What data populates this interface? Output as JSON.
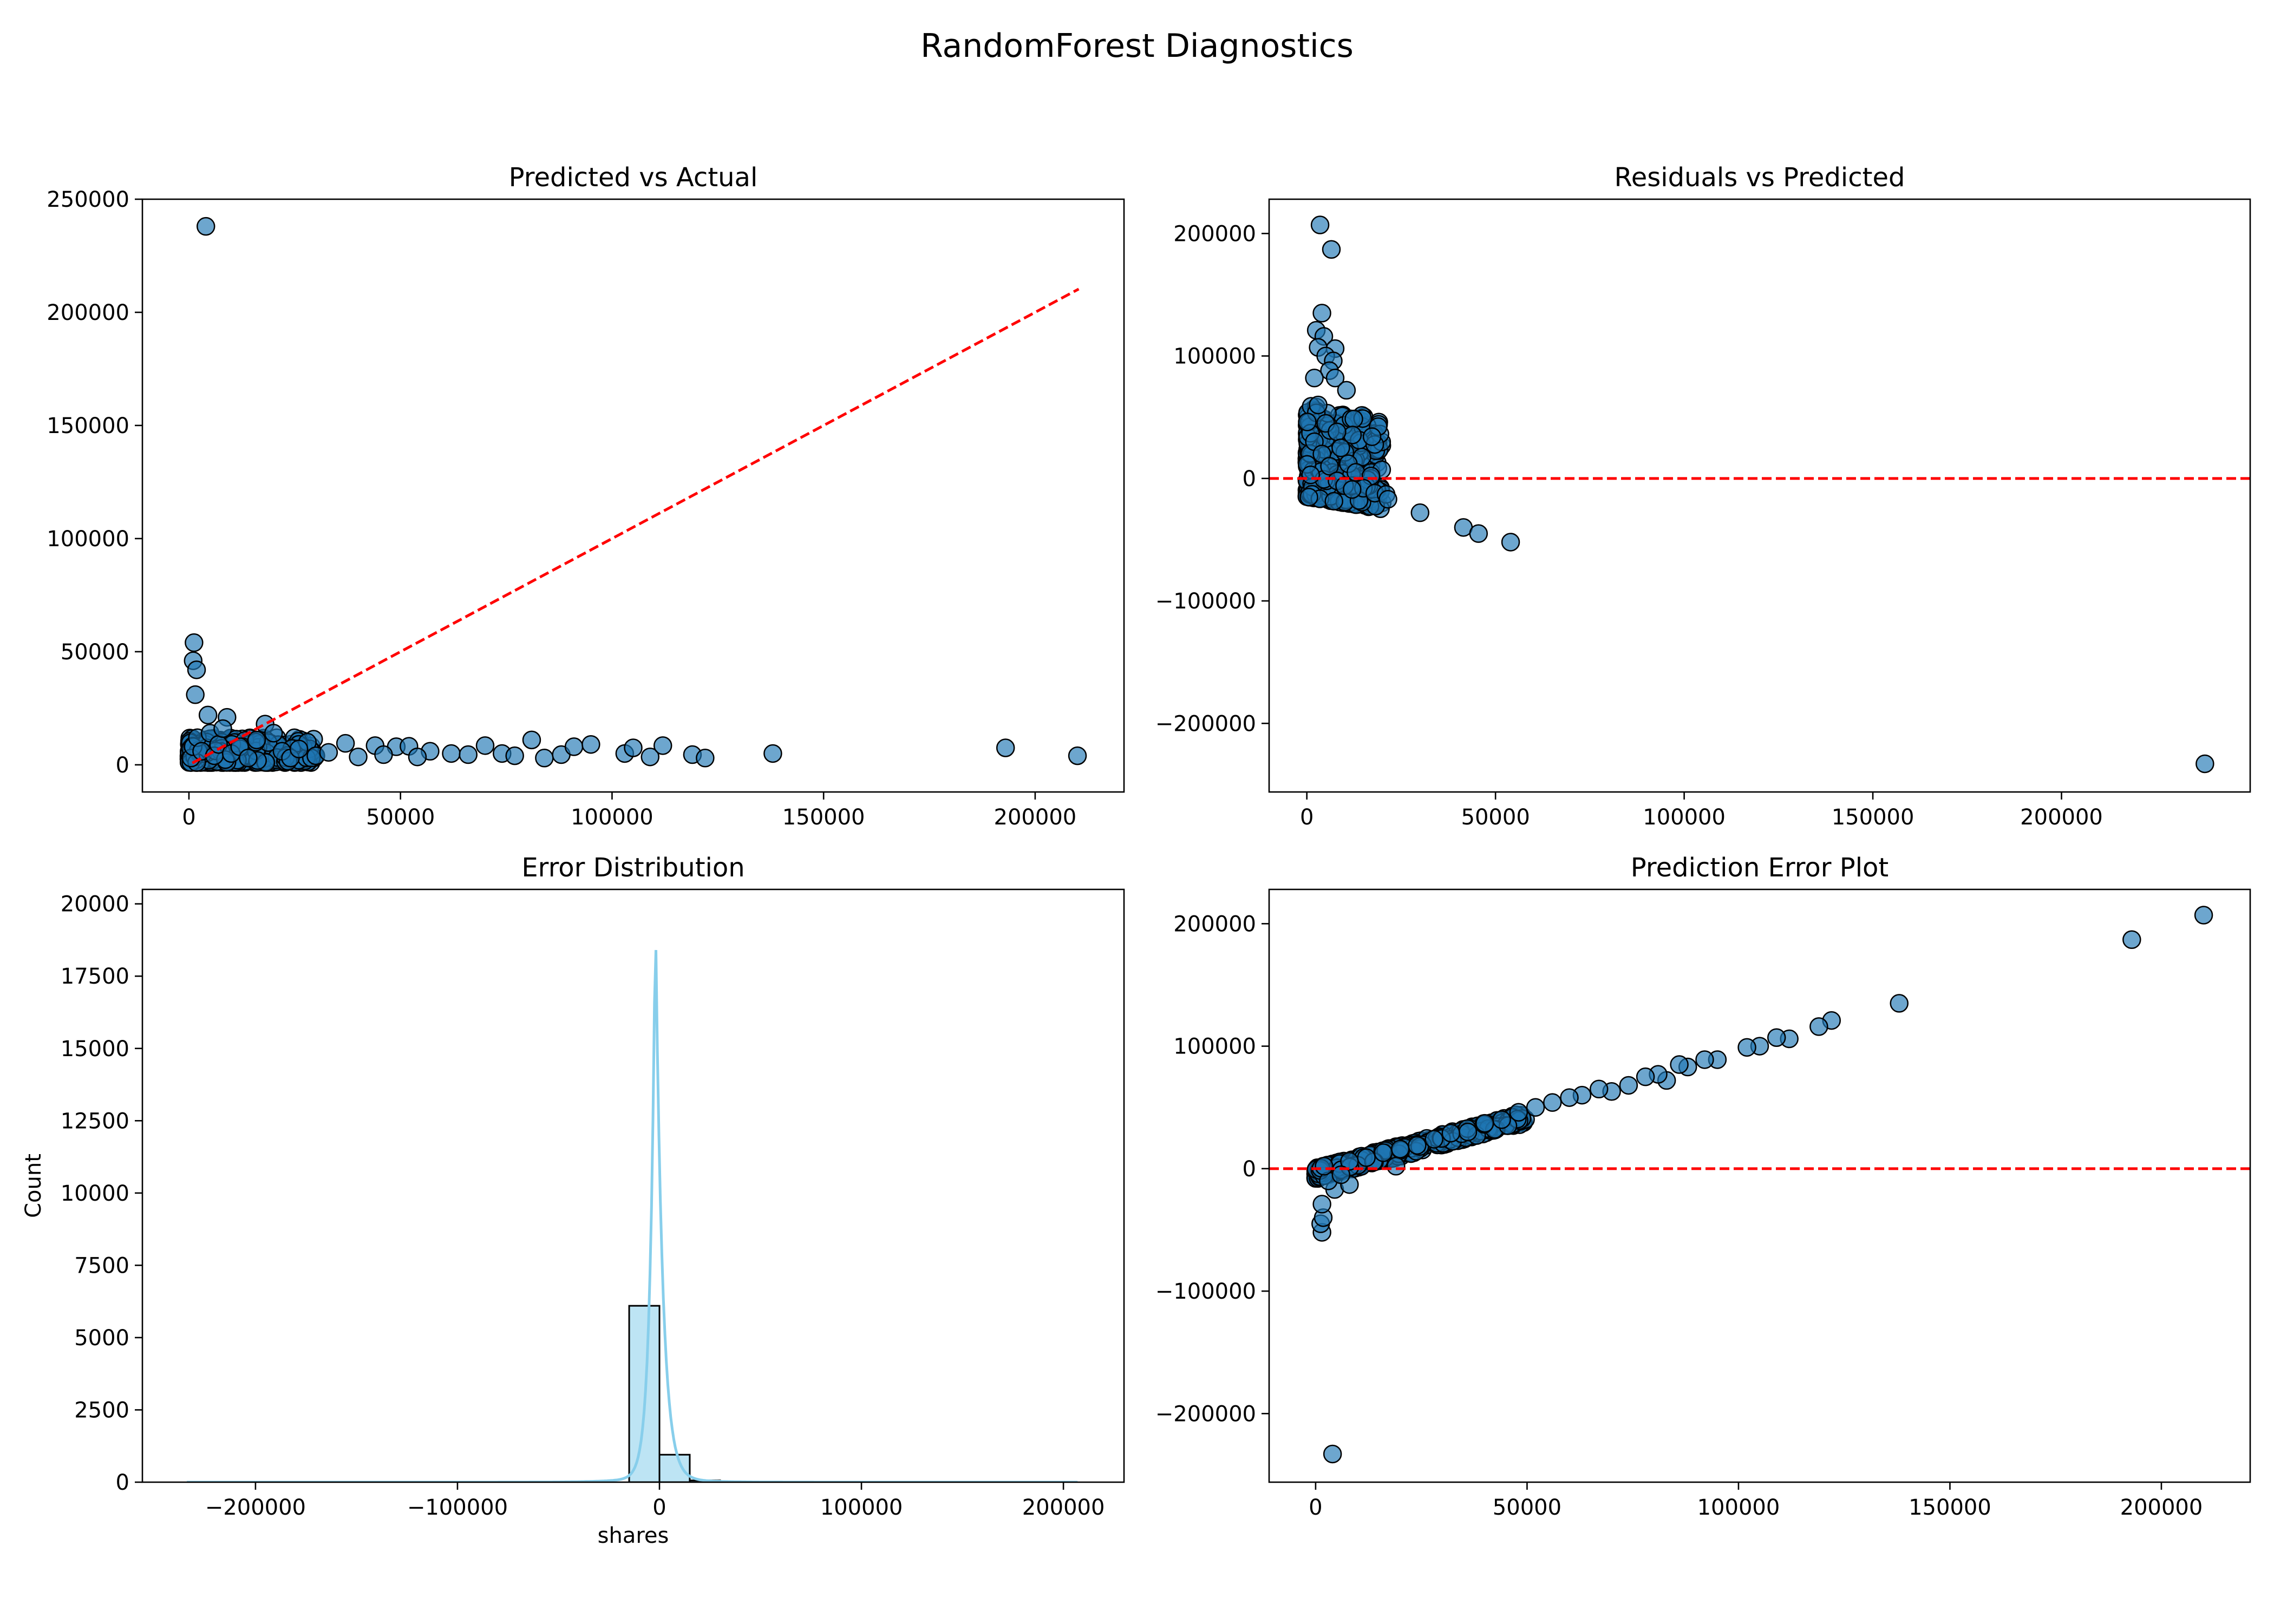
{
  "figure": {
    "title": "RandomForest Diagnostics"
  },
  "colors": {
    "point_fill": "#1f77b4",
    "point_edge": "#000000",
    "ref_line": "#ff0000",
    "hist_fill": "#87ceeb",
    "kde_line": "#87ceeb"
  },
  "chart_data": [
    {
      "type": "scatter",
      "title": "Predicted vs Actual",
      "xlabel": "",
      "ylabel": "",
      "xlim": [
        -11000,
        221000
      ],
      "ylim": [
        -12000,
        250000
      ],
      "xticks": [
        0,
        50000,
        100000,
        150000,
        200000
      ],
      "yticks": [
        0,
        50000,
        100000,
        150000,
        200000,
        250000
      ],
      "reference_line": {
        "style": "dashed",
        "from": [
          800,
          800
        ],
        "to": [
          210300,
          210300
        ]
      },
      "points": [
        [
          4000,
          238000
        ],
        [
          1200,
          54000
        ],
        [
          1000,
          46000
        ],
        [
          1800,
          42000
        ],
        [
          1500,
          31000
        ],
        [
          4500,
          22000
        ],
        [
          9000,
          21000
        ],
        [
          18000,
          18000
        ],
        [
          20000,
          14000
        ],
        [
          28000,
          10000
        ],
        [
          37000,
          9500
        ],
        [
          44000,
          8500
        ],
        [
          49000,
          8000
        ],
        [
          52000,
          8200
        ],
        [
          57000,
          6000
        ],
        [
          62000,
          5000
        ],
        [
          66000,
          4500
        ],
        [
          70000,
          8500
        ],
        [
          74000,
          5000
        ],
        [
          77000,
          4000
        ],
        [
          81000,
          11000
        ],
        [
          84000,
          3000
        ],
        [
          88000,
          4500
        ],
        [
          91000,
          8000
        ],
        [
          95000,
          9000
        ],
        [
          103000,
          5000
        ],
        [
          105000,
          7500
        ],
        [
          109000,
          3500
        ],
        [
          112000,
          8500
        ],
        [
          119000,
          4500
        ],
        [
          122000,
          3000
        ],
        [
          138000,
          5000
        ],
        [
          193000,
          7500
        ],
        [
          210000,
          4000
        ],
        [
          500,
          3000
        ],
        [
          1000,
          8000
        ],
        [
          2000,
          12000
        ],
        [
          3000,
          6000
        ],
        [
          5000,
          14000
        ],
        [
          6000,
          4000
        ],
        [
          7000,
          9000
        ],
        [
          8000,
          16000
        ],
        [
          10000,
          5000
        ],
        [
          12000,
          8000
        ],
        [
          14000,
          3000
        ],
        [
          16000,
          11000
        ],
        [
          22000,
          6000
        ],
        [
          24000,
          3000
        ],
        [
          26000,
          7000
        ],
        [
          30000,
          4000
        ],
        [
          33000,
          5500
        ],
        [
          40000,
          3500
        ],
        [
          46000,
          4500
        ],
        [
          54000,
          3500
        ]
      ],
      "cluster": {
        "x": [
          0,
          30000
        ],
        "y": [
          1000,
          12000
        ]
      }
    },
    {
      "type": "scatter",
      "title": "Residuals vs Predicted",
      "xlabel": "",
      "ylabel": "",
      "xlim": [
        -10000,
        250000
      ],
      "ylim": [
        -256000,
        228000
      ],
      "xticks": [
        0,
        50000,
        100000,
        150000,
        200000
      ],
      "yticks": [
        -200000,
        -100000,
        0,
        100000,
        200000
      ],
      "reference_line": {
        "style": "dashed",
        "y": 0
      },
      "points": [
        [
          3500,
          207000
        ],
        [
          6500,
          187000
        ],
        [
          4000,
          135000
        ],
        [
          2500,
          121000
        ],
        [
          4500,
          116000
        ],
        [
          3000,
          107000
        ],
        [
          7500,
          106000
        ],
        [
          5000,
          100000
        ],
        [
          7000,
          96000
        ],
        [
          6000,
          88000
        ],
        [
          7500,
          82000
        ],
        [
          10500,
          72000
        ],
        [
          2000,
          82000
        ],
        [
          3000,
          60000
        ],
        [
          5000,
          45000
        ],
        [
          8000,
          38000
        ],
        [
          9000,
          25000
        ],
        [
          11000,
          12000
        ],
        [
          13000,
          5000
        ],
        [
          17000,
          2000
        ],
        [
          15000,
          -8000
        ],
        [
          18000,
          -12000
        ],
        [
          21000,
          -13000
        ],
        [
          21500,
          -17000
        ],
        [
          30000,
          -28000
        ],
        [
          41500,
          -40000
        ],
        [
          45500,
          -45000
        ],
        [
          54000,
          -52000
        ],
        [
          238000,
          -233000
        ],
        [
          2000,
          30000
        ],
        [
          4000,
          20000
        ],
        [
          6000,
          10000
        ],
        [
          8000,
          -2000
        ],
        [
          10000,
          -6000
        ],
        [
          12000,
          -9000
        ]
      ],
      "cluster": {
        "x": [
          0,
          20000
        ],
        "y": [
          -15000,
          60000
        ]
      }
    },
    {
      "type": "histogram",
      "title": "Error Distribution",
      "xlabel": "shares",
      "ylabel": "Count",
      "xlim": [
        -256000,
        230000
      ],
      "ylim": [
        0,
        20500
      ],
      "xticks": [
        -200000,
        -100000,
        0,
        100000,
        200000
      ],
      "yticks": [
        0,
        2500,
        5000,
        7500,
        10000,
        12500,
        15000,
        17500,
        20000
      ],
      "bin_width": 15000,
      "bins": [
        {
          "start": -15000,
          "count": 6100
        },
        {
          "start": 0,
          "count": 950
        },
        {
          "start": 15000,
          "count": 60
        },
        {
          "start": 30000,
          "count": 15
        }
      ],
      "kde_peak": {
        "x": -2000,
        "y": 19600
      },
      "kde_range": [
        -234000,
        207000
      ]
    },
    {
      "type": "scatter",
      "title": "Prediction Error Plot",
      "xlabel": "",
      "ylabel": "",
      "xlim": [
        -11000,
        221000
      ],
      "ylim": [
        -256000,
        228000
      ],
      "xticks": [
        0,
        50000,
        100000,
        150000,
        200000
      ],
      "yticks": [
        -200000,
        -100000,
        0,
        100000,
        200000
      ],
      "reference_line": {
        "style": "dashed",
        "y": 0
      },
      "points": [
        [
          210000,
          207000
        ],
        [
          193000,
          187000
        ],
        [
          138000,
          135000
        ],
        [
          122000,
          121000
        ],
        [
          119000,
          116000
        ],
        [
          112000,
          106000
        ],
        [
          109000,
          107000
        ],
        [
          105000,
          100000
        ],
        [
          102000,
          99000
        ],
        [
          95000,
          89000
        ],
        [
          92000,
          89000
        ],
        [
          88000,
          83000
        ],
        [
          86000,
          85000
        ],
        [
          83000,
          72000
        ],
        [
          81000,
          77000
        ],
        [
          78000,
          75000
        ],
        [
          74000,
          68000
        ],
        [
          70000,
          63000
        ],
        [
          67000,
          65000
        ],
        [
          63000,
          60000
        ],
        [
          60000,
          58000
        ],
        [
          56000,
          54000
        ],
        [
          52000,
          50000
        ],
        [
          48000,
          46000
        ],
        [
          44000,
          40000
        ],
        [
          40000,
          37000
        ],
        [
          36000,
          30000
        ],
        [
          32000,
          29000
        ],
        [
          28000,
          24000
        ],
        [
          24000,
          19000
        ],
        [
          20000,
          16000
        ],
        [
          19000,
          2000
        ],
        [
          16000,
          13000
        ],
        [
          12000,
          9000
        ],
        [
          8000,
          6000
        ],
        [
          4000,
          -233000
        ],
        [
          1500,
          -52000
        ],
        [
          1200,
          -45000
        ],
        [
          1800,
          -40000
        ],
        [
          1500,
          -29000
        ],
        [
          4500,
          -17000
        ],
        [
          8000,
          -13000
        ],
        [
          3000,
          -10000
        ],
        [
          6000,
          -5000
        ],
        [
          2000,
          2000
        ]
      ],
      "cluster": {
        "x": [
          0,
          50000
        ],
        "y": [
          -12000,
          48000
        ]
      }
    }
  ]
}
